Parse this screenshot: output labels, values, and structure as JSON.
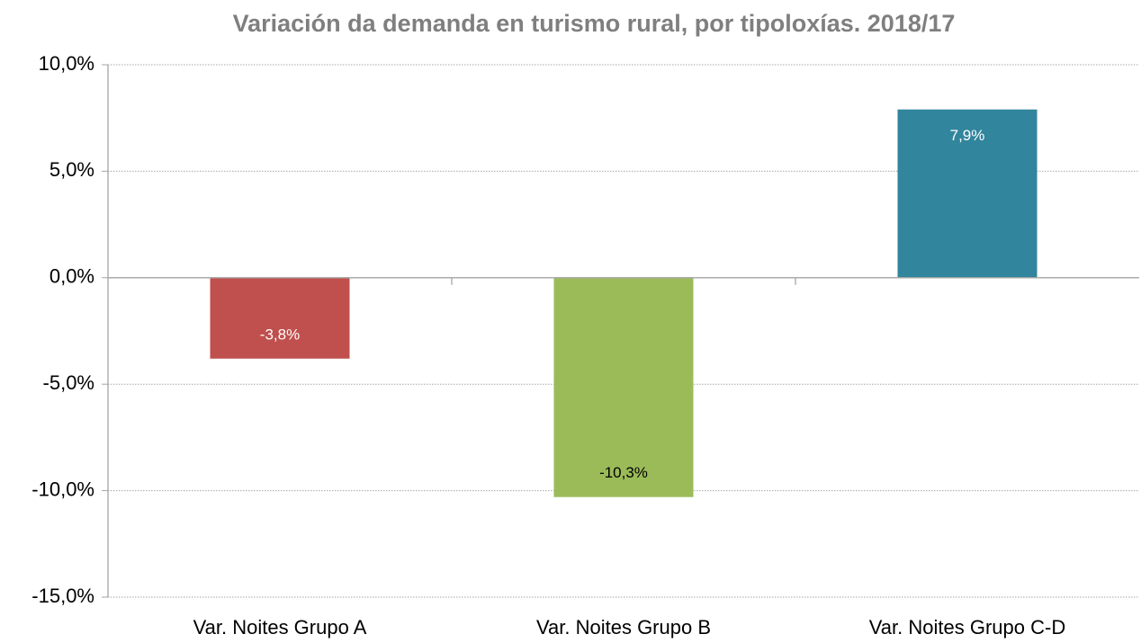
{
  "chart_data": {
    "type": "bar",
    "title": "Variación da demanda en turismo rural, por tipoloxías. 2018/17",
    "categories": [
      "Var. Noites Grupo A",
      "Var. Noites Grupo B",
      "Var. Noites Grupo C-D"
    ],
    "values": [
      -3.8,
      -10.3,
      7.9
    ],
    "value_labels": [
      "-3,8%",
      "-10,3%",
      "7,9%"
    ],
    "colors": [
      "#c0504d",
      "#9bbb59",
      "#31859c"
    ],
    "value_label_colors": [
      "#ffffff",
      "#000000",
      "#ffffff"
    ],
    "ylim": [
      -15,
      10
    ],
    "yticks": [
      {
        "value": -15,
        "label": "-15,0%"
      },
      {
        "value": -10,
        "label": "-10,0%"
      },
      {
        "value": -5,
        "label": "-5,0%"
      },
      {
        "value": 0,
        "label": "0,0%"
      },
      {
        "value": 5,
        "label": "5,0%"
      },
      {
        "value": 10,
        "label": "10,0%"
      }
    ],
    "grid": true
  }
}
